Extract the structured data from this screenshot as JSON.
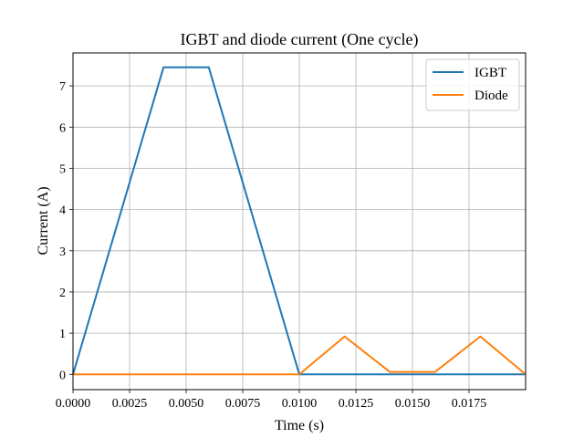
{
  "chart_data": {
    "type": "line",
    "title": "IGBT and diode current (One cycle)",
    "xlabel": "Time (s)",
    "ylabel": "Current (A)",
    "xlim": [
      0,
      0.02
    ],
    "ylim": [
      -0.37,
      7.8
    ],
    "xticks": [
      0,
      0.0025,
      0.005,
      0.0075,
      0.01,
      0.0125,
      0.015,
      0.0175
    ],
    "xtick_labels": [
      "0.0000",
      "0.0025",
      "0.0050",
      "0.0075",
      "0.0100",
      "0.0125",
      "0.0150",
      "0.0175"
    ],
    "yticks": [
      0,
      1,
      2,
      3,
      4,
      5,
      6,
      7
    ],
    "ytick_labels": [
      "0",
      "1",
      "2",
      "3",
      "4",
      "5",
      "6",
      "7"
    ],
    "grid": true,
    "legend_position": "top-right",
    "series": [
      {
        "name": "IGBT",
        "color": "#1f77b4",
        "x": [
          0,
          0.004,
          0.006,
          0.01,
          0.02
        ],
        "y": [
          0,
          7.45,
          7.45,
          0,
          0
        ]
      },
      {
        "name": "Diode",
        "color": "#ff7f0e",
        "x": [
          0,
          0.01,
          0.012,
          0.014,
          0.016,
          0.018,
          0.02
        ],
        "y": [
          0,
          0,
          0.92,
          0.06,
          0.06,
          0.92,
          0
        ]
      }
    ]
  }
}
